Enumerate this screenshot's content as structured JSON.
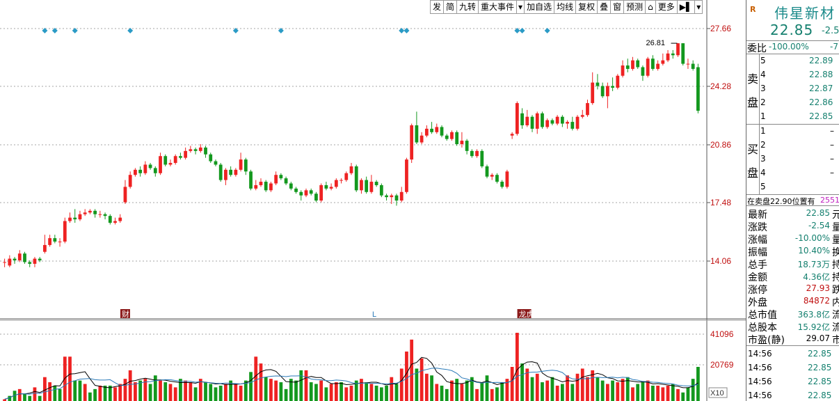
{
  "toolbar": {
    "items": [
      "发",
      "简",
      "九转",
      "重大事件",
      "",
      "加自选",
      "均线",
      "复权",
      "叠",
      "窗",
      "预测",
      "",
      "更多",
      "",
      ""
    ]
  },
  "chart_data": {
    "type": "candlestick",
    "price_axis": {
      "labels": [
        "27.66",
        "24.28",
        "20.86",
        "17.48",
        "14.06"
      ],
      "values": [
        27.66,
        24.28,
        20.86,
        17.48,
        14.06
      ]
    },
    "volume_axis": {
      "labels": [
        "41096",
        "20769",
        "X10"
      ]
    },
    "max_marker": {
      "label": "26.81",
      "value": 26.81
    },
    "event_markers": [
      "财",
      "L",
      "龙虎"
    ],
    "colors": {
      "up": "#ee2222",
      "down": "#13981e",
      "ma1": "#000000",
      "ma2": "#2a7ab8",
      "grid": "#a4a4a4",
      "diamond": "#2b9bc6",
      "axis_label_up": "#c01010"
    },
    "candles": [
      [
        14.0,
        14.0,
        13.7,
        14.2
      ],
      [
        13.8,
        14.2,
        13.7,
        14.4
      ],
      [
        14.2,
        14.1,
        13.9,
        14.3
      ],
      [
        14.1,
        14.5,
        14.0,
        14.7
      ],
      [
        14.5,
        14.0,
        13.9,
        14.6
      ],
      [
        14.0,
        13.9,
        13.7,
        14.1
      ],
      [
        13.9,
        14.2,
        13.7,
        14.3
      ],
      [
        14.2,
        14.1,
        14.0,
        14.3
      ],
      [
        14.6,
        15.0,
        14.5,
        15.6
      ],
      [
        15.0,
        15.4,
        14.9,
        15.6
      ],
      [
        15.4,
        15.2,
        15.1,
        15.6
      ],
      [
        15.2,
        15.2,
        14.9,
        15.4
      ],
      [
        15.2,
        16.4,
        15.1,
        16.6
      ],
      [
        16.4,
        16.6,
        16.3,
        16.9
      ],
      [
        16.6,
        16.5,
        16.3,
        17.1
      ],
      [
        16.5,
        16.8,
        16.4,
        17.0
      ],
      [
        16.8,
        16.9,
        16.7,
        17.1
      ],
      [
        16.9,
        17.0,
        16.8,
        17.1
      ],
      [
        17.0,
        16.8,
        16.6,
        17.1
      ],
      [
        16.8,
        16.8,
        16.6,
        17.0
      ],
      [
        16.8,
        16.7,
        16.5,
        16.9
      ],
      [
        16.7,
        16.3,
        16.2,
        16.8
      ],
      [
        16.3,
        16.4,
        16.2,
        16.6
      ],
      [
        16.4,
        16.6,
        16.3,
        16.8
      ],
      [
        17.5,
        18.4,
        17.4,
        18.8
      ],
      [
        18.4,
        19.1,
        18.3,
        19.3
      ],
      [
        19.1,
        19.4,
        19.0,
        19.5
      ],
      [
        19.4,
        19.2,
        19.0,
        19.6
      ],
      [
        19.2,
        19.7,
        19.1,
        19.9
      ],
      [
        19.7,
        19.5,
        19.4,
        19.8
      ],
      [
        19.5,
        19.2,
        19.0,
        19.6
      ],
      [
        19.2,
        20.2,
        19.1,
        20.4
      ],
      [
        20.2,
        19.7,
        19.6,
        20.3
      ],
      [
        19.7,
        19.8,
        19.6,
        20.0
      ],
      [
        19.8,
        20.2,
        19.7,
        20.3
      ],
      [
        20.2,
        20.1,
        20.0,
        20.4
      ],
      [
        20.1,
        20.5,
        20.0,
        20.7
      ],
      [
        20.5,
        20.6,
        20.4,
        20.8
      ],
      [
        20.6,
        20.5,
        20.3,
        20.7
      ],
      [
        20.5,
        20.7,
        20.4,
        20.9
      ],
      [
        20.7,
        20.3,
        20.1,
        20.8
      ],
      [
        20.3,
        19.9,
        19.8,
        20.4
      ],
      [
        19.9,
        19.7,
        19.6,
        20.0
      ],
      [
        19.7,
        18.8,
        18.7,
        19.8
      ],
      [
        18.8,
        19.4,
        18.5,
        19.5
      ],
      [
        19.4,
        19.1,
        19.0,
        19.6
      ],
      [
        19.1,
        19.4,
        19.0,
        19.5
      ],
      [
        19.4,
        20.0,
        19.3,
        20.4
      ],
      [
        20.0,
        19.3,
        19.1,
        20.1
      ],
      [
        19.3,
        18.3,
        18.2,
        19.4
      ],
      [
        18.3,
        18.5,
        18.2,
        18.8
      ],
      [
        18.5,
        18.7,
        18.4,
        18.9
      ],
      [
        18.7,
        18.2,
        18.1,
        18.8
      ],
      [
        18.2,
        18.6,
        18.1,
        18.7
      ],
      [
        18.6,
        19.1,
        18.5,
        19.3
      ],
      [
        19.1,
        18.9,
        18.8,
        19.2
      ],
      [
        18.9,
        18.6,
        18.5,
        19.0
      ],
      [
        18.6,
        18.3,
        18.2,
        18.7
      ],
      [
        18.3,
        18.1,
        18.0,
        18.4
      ],
      [
        18.1,
        17.9,
        17.6,
        18.2
      ],
      [
        17.9,
        18.2,
        17.8,
        18.3
      ],
      [
        18.2,
        18.0,
        17.9,
        18.3
      ],
      [
        18.0,
        17.6,
        17.5,
        18.1
      ],
      [
        17.6,
        18.5,
        17.5,
        18.6
      ],
      [
        18.5,
        18.3,
        18.2,
        18.7
      ],
      [
        18.3,
        18.4,
        18.2,
        18.6
      ],
      [
        18.4,
        18.8,
        18.3,
        18.9
      ],
      [
        18.8,
        18.8,
        18.6,
        18.9
      ],
      [
        18.8,
        19.2,
        18.7,
        19.3
      ],
      [
        19.2,
        19.6,
        19.1,
        19.8
      ],
      [
        19.6,
        18.2,
        18.1,
        19.7
      ],
      [
        18.2,
        18.8,
        18.0,
        18.9
      ],
      [
        18.8,
        18.1,
        18.0,
        19.0
      ],
      [
        18.1,
        18.7,
        18.0,
        19.1
      ],
      [
        18.7,
        18.5,
        18.4,
        18.8
      ],
      [
        18.5,
        17.9,
        17.8,
        18.6
      ],
      [
        17.9,
        17.8,
        17.6,
        18.0
      ],
      [
        17.8,
        17.9,
        17.4,
        18.0
      ],
      [
        17.9,
        17.6,
        17.3,
        18.0
      ],
      [
        17.6,
        18.1,
        17.5,
        18.4
      ],
      [
        18.1,
        20.0,
        18.0,
        20.1
      ],
      [
        20.0,
        22.0,
        19.8,
        22.1
      ],
      [
        22.0,
        21.0,
        20.9,
        22.8
      ],
      [
        21.0,
        21.4,
        20.9,
        21.6
      ],
      [
        21.4,
        21.8,
        21.3,
        22.0
      ],
      [
        21.8,
        21.6,
        21.5,
        22.2
      ],
      [
        21.6,
        21.9,
        21.5,
        22.1
      ],
      [
        21.9,
        21.4,
        21.3,
        22.0
      ],
      [
        21.4,
        21.2,
        21.1,
        21.5
      ],
      [
        21.2,
        21.6,
        21.1,
        21.7
      ],
      [
        21.6,
        20.9,
        20.8,
        21.7
      ],
      [
        20.9,
        21.1,
        20.7,
        21.6
      ],
      [
        21.1,
        20.5,
        20.3,
        21.2
      ],
      [
        20.5,
        20.2,
        20.1,
        20.6
      ],
      [
        20.2,
        20.5,
        20.1,
        20.6
      ],
      [
        20.5,
        19.6,
        19.5,
        20.6
      ],
      [
        19.6,
        19.0,
        18.9,
        19.7
      ],
      [
        19.0,
        19.1,
        18.8,
        19.2
      ],
      [
        19.1,
        18.7,
        18.6,
        19.2
      ],
      [
        18.7,
        18.4,
        18.3,
        18.8
      ],
      [
        18.4,
        19.3,
        18.3,
        19.4
      ],
      [
        21.4,
        21.5,
        21.2,
        21.6
      ],
      [
        21.5,
        23.3,
        21.4,
        23.4
      ],
      [
        22.7,
        22.0,
        21.8,
        23.0
      ],
      [
        22.0,
        22.5,
        21.9,
        22.9
      ],
      [
        22.5,
        21.8,
        21.6,
        22.6
      ],
      [
        21.8,
        22.7,
        21.5,
        22.8
      ],
      [
        22.7,
        21.9,
        21.8,
        22.8
      ],
      [
        21.9,
        22.3,
        21.8,
        22.4
      ],
      [
        22.3,
        22.1,
        22.0,
        22.4
      ],
      [
        22.1,
        22.5,
        22.0,
        22.6
      ],
      [
        22.5,
        22.1,
        21.9,
        22.6
      ],
      [
        22.1,
        22.2,
        21.8,
        22.3
      ],
      [
        22.2,
        21.8,
        21.7,
        22.5
      ],
      [
        21.8,
        22.5,
        21.7,
        22.6
      ],
      [
        22.5,
        22.6,
        22.4,
        22.9
      ],
      [
        22.6,
        23.3,
        22.5,
        23.5
      ],
      [
        23.3,
        24.5,
        23.2,
        25.1
      ],
      [
        24.5,
        24.3,
        24.1,
        25.0
      ],
      [
        24.3,
        23.7,
        23.6,
        24.5
      ],
      [
        23.7,
        24.3,
        23.0,
        24.5
      ],
      [
        24.3,
        24.2,
        24.0,
        24.8
      ],
      [
        24.2,
        24.9,
        24.1,
        25.0
      ],
      [
        24.9,
        25.5,
        24.8,
        25.8
      ],
      [
        25.5,
        25.3,
        25.1,
        25.9
      ],
      [
        25.3,
        25.8,
        25.2,
        26.0
      ],
      [
        25.8,
        25.4,
        25.3,
        25.9
      ],
      [
        25.4,
        24.9,
        24.6,
        25.5
      ],
      [
        24.9,
        25.9,
        24.8,
        26.0
      ],
      [
        25.9,
        25.3,
        25.2,
        26.1
      ],
      [
        25.3,
        25.6,
        25.2,
        25.8
      ],
      [
        25.6,
        25.8,
        25.5,
        26.2
      ],
      [
        25.8,
        26.2,
        25.7,
        26.4
      ],
      [
        26.2,
        26.1,
        25.9,
        26.4
      ],
      [
        26.1,
        26.8,
        26.0,
        26.8
      ],
      [
        26.8,
        25.6,
        25.5,
        26.8
      ],
      [
        25.6,
        25.6,
        25.3,
        25.9
      ],
      [
        25.6,
        25.3,
        25.2,
        25.8
      ],
      [
        25.4,
        22.85,
        22.7,
        25.6
      ]
    ],
    "volumes": [
      1,
      3,
      6,
      7,
      4,
      3,
      8,
      3,
      14,
      11,
      9,
      7,
      26,
      26,
      12,
      12,
      10,
      5,
      7,
      9,
      9,
      9,
      8,
      10,
      13,
      18,
      11,
      12,
      13,
      10,
      15,
      12,
      11,
      10,
      8,
      13,
      12,
      11,
      8,
      13,
      11,
      10,
      8,
      9,
      10,
      12,
      10,
      9,
      12,
      17,
      26,
      22,
      14,
      13,
      12,
      11,
      7,
      13,
      12,
      18,
      18,
      11,
      10,
      12,
      8,
      10,
      11,
      11,
      8,
      9,
      12,
      13,
      11,
      10,
      9,
      8,
      9,
      14,
      10,
      19,
      29,
      36,
      19,
      25,
      16,
      15,
      10,
      9,
      7,
      12,
      13,
      10,
      12,
      14,
      7,
      11,
      15,
      7,
      8,
      11,
      13,
      20,
      40,
      22,
      19,
      14,
      16,
      11,
      12,
      14,
      9,
      10,
      15,
      10,
      16,
      19,
      14,
      18,
      14,
      12,
      10,
      12,
      11,
      13,
      14,
      8,
      10,
      11,
      12,
      9,
      9,
      8,
      9,
      10,
      7,
      5,
      8,
      13,
      20
    ],
    "volume_colors": [
      0,
      1,
      1,
      0,
      1,
      1,
      0,
      1,
      0,
      0,
      1,
      1,
      0,
      0,
      1,
      1,
      0,
      1,
      1,
      0,
      1,
      1,
      0,
      0,
      0,
      0,
      0,
      1,
      0,
      1,
      1,
      0,
      1,
      0,
      0,
      1,
      0,
      0,
      1,
      0,
      1,
      1,
      1,
      1,
      0,
      1,
      0,
      0,
      1,
      1,
      0,
      0,
      1,
      0,
      0,
      1,
      1,
      1,
      1,
      1,
      0,
      1,
      1,
      0,
      1,
      0,
      0,
      1,
      0,
      0,
      1,
      0,
      1,
      0,
      1,
      1,
      1,
      0,
      1,
      0,
      0,
      0,
      1,
      0,
      0,
      1,
      0,
      1,
      1,
      0,
      1,
      0,
      1,
      1,
      0,
      1,
      1,
      0,
      1,
      1,
      0,
      0,
      0,
      1,
      0,
      1,
      0,
      1,
      0,
      1,
      0,
      1,
      0,
      1,
      0,
      0,
      0,
      0,
      1,
      1,
      0,
      1,
      0,
      0,
      1,
      0,
      1,
      1,
      0,
      1,
      0,
      0,
      0,
      1,
      0,
      1,
      1,
      1,
      1
    ],
    "diamond_indices": [
      8,
      10,
      14,
      25,
      46,
      55,
      79,
      80,
      102,
      103,
      108
    ]
  },
  "quote": {
    "badge": "R",
    "name": "伟星新材",
    "price": "22.85",
    "change": "-2.5",
    "weibi": {
      "label": "委比",
      "value": "-100.00%",
      "value2": "-7"
    },
    "sell_label": [
      "卖",
      "盘"
    ],
    "buy_label": [
      "买",
      "盘"
    ],
    "sells": [
      {
        "level": "5",
        "price": "22.89",
        "vol": ""
      },
      {
        "level": "4",
        "price": "22.88",
        "vol": ""
      },
      {
        "level": "3",
        "price": "22.87",
        "vol": ""
      },
      {
        "level": "2",
        "price": "22.86",
        "vol": ""
      },
      {
        "level": "1",
        "price": "22.85",
        "vol": ""
      }
    ],
    "buys": [
      {
        "level": "1",
        "price": "",
        "vol": "–"
      },
      {
        "level": "2",
        "price": "",
        "vol": "–"
      },
      {
        "level": "3",
        "price": "",
        "vol": "–"
      },
      {
        "level": "4",
        "price": "",
        "vol": "–"
      },
      {
        "level": "5",
        "price": "",
        "vol": ""
      }
    ],
    "sell_info": "在卖盘22.90位置有",
    "sell_info_value": "2551",
    "stats": [
      {
        "label": "最新",
        "value": "22.85",
        "suffix": "元",
        "color": "#15806f"
      },
      {
        "label": "涨跌",
        "value": "-2.54",
        "suffix": "量",
        "color": "#15806f"
      },
      {
        "label": "涨幅",
        "value": "-10.00%",
        "suffix": "量",
        "color": "#15806f"
      },
      {
        "label": "振幅",
        "value": "10.40%",
        "suffix": "换",
        "color": "#15806f"
      },
      {
        "label": "总手",
        "value": "18.73万",
        "suffix": "持",
        "color": "#15806f"
      },
      {
        "label": "金额",
        "value": "4.36亿",
        "suffix": "持",
        "color": "#15806f"
      },
      {
        "label": "涨停",
        "value": "27.93",
        "suffix": "跌",
        "color": "#c01010"
      },
      {
        "label": "外盘",
        "value": "84872",
        "suffix": "内",
        "color": "#c01010"
      },
      {
        "label": "总市值",
        "value": "363.8亿",
        "suffix": "流",
        "color": "#15806f"
      },
      {
        "label": "总股本",
        "value": "15.92亿",
        "suffix": "流",
        "color": "#15806f"
      },
      {
        "label": "市盈(静)",
        "value": "29.07",
        "suffix": "市",
        "color": "#000000"
      }
    ],
    "ticks": [
      {
        "time": "14:56",
        "price": "22.85"
      },
      {
        "time": "14:56",
        "price": "22.85"
      },
      {
        "time": "14:56",
        "price": "22.85"
      },
      {
        "time": "14:56",
        "price": "22.85"
      }
    ]
  }
}
